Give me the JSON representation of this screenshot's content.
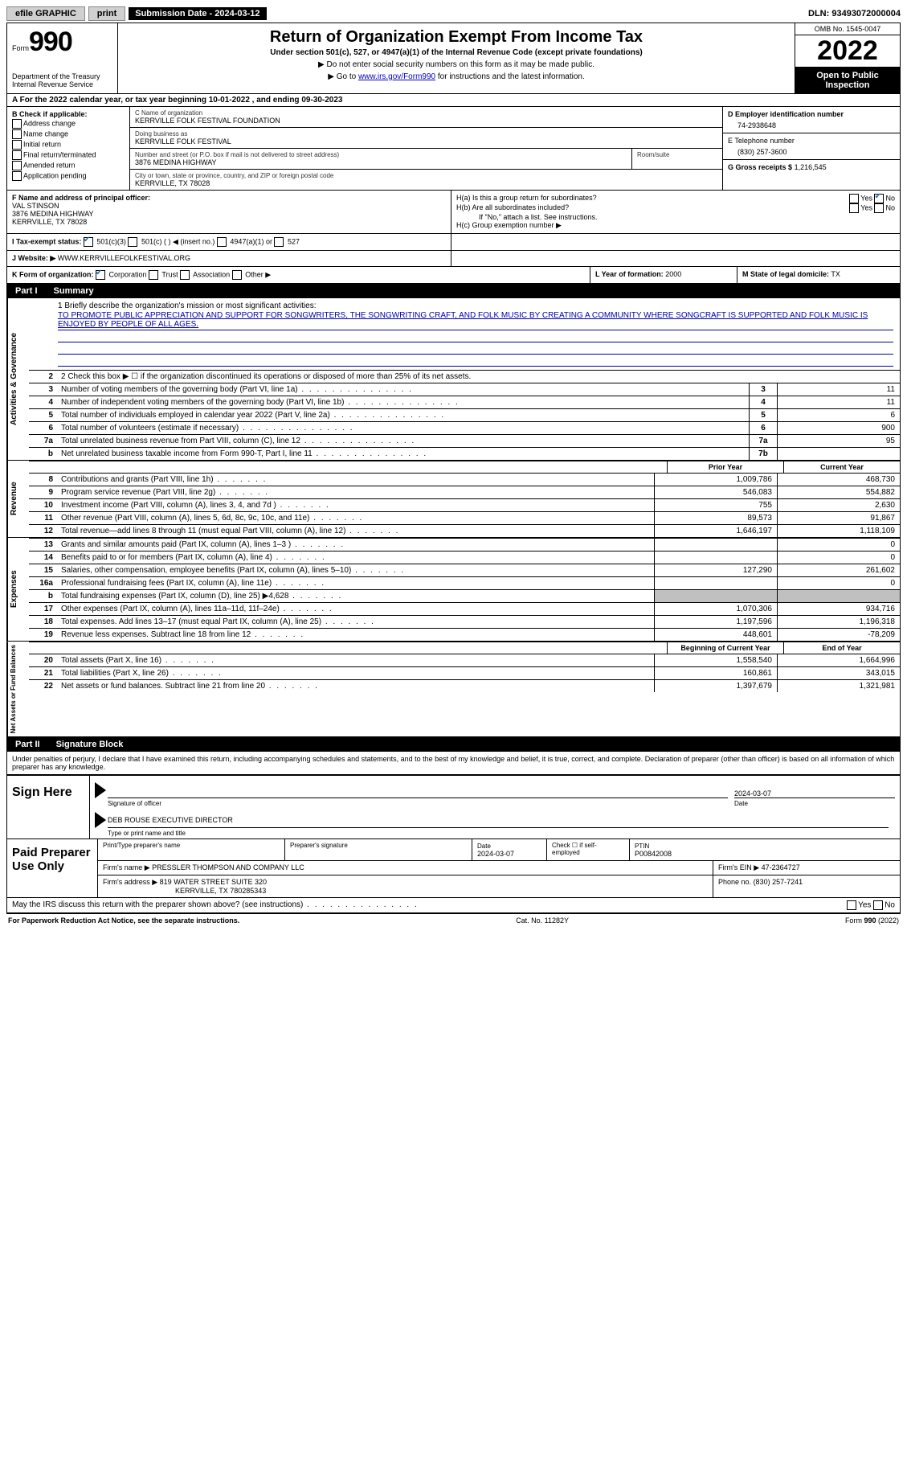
{
  "topbar": {
    "efile": "efile GRAPHIC",
    "print": "print",
    "subdate_label": "Submission Date - 2024-03-12",
    "dln": "DLN: 93493072000004"
  },
  "header": {
    "form_prefix": "Form",
    "form_number": "990",
    "dept": "Department of the Treasury",
    "irs": "Internal Revenue Service",
    "title": "Return of Organization Exempt From Income Tax",
    "subtitle": "Under section 501(c), 527, or 4947(a)(1) of the Internal Revenue Code (except private foundations)",
    "note1": "▶ Do not enter social security numbers on this form as it may be made public.",
    "note2_pre": "▶ Go to ",
    "note2_link": "www.irs.gov/Form990",
    "note2_post": " for instructions and the latest information.",
    "omb": "OMB No. 1545-0047",
    "year": "2022",
    "open": "Open to Public Inspection"
  },
  "rowA": "A For the 2022 calendar year, or tax year beginning 10-01-2022    , and ending 09-30-2023",
  "colB": {
    "title": "B Check if applicable:",
    "items": [
      "Address change",
      "Name change",
      "Initial return",
      "Final return/terminated",
      "Amended return",
      "Application pending"
    ]
  },
  "colC": {
    "name_label": "C Name of organization",
    "name": "KERRVILLE FOLK FESTIVAL FOUNDATION",
    "dba_label": "Doing business as",
    "dba": "KERRVILLE FOLK FESTIVAL",
    "street_label": "Number and street (or P.O. box if mail is not delivered to street address)",
    "street": "3876 MEDINA HIGHWAY",
    "room_label": "Room/suite",
    "city_label": "City or town, state or province, country, and ZIP or foreign postal code",
    "city": "KERRVILLE, TX  78028"
  },
  "colD": {
    "ein_label": "D Employer identification number",
    "ein": "74-2938648",
    "phone_label": "E Telephone number",
    "phone": "(830) 257-3600",
    "gross_label": "G Gross receipts $",
    "gross": "1,216,545"
  },
  "rowF": {
    "label": "F Name and address of principal officer:",
    "name": "VAL STINSON",
    "addr1": "3876 MEDINA HIGHWAY",
    "addr2": "KERRVILLE, TX  78028"
  },
  "rowH": {
    "ha": "H(a) Is this a group return for subordinates?",
    "hb": "H(b) Are all subordinates included?",
    "hb_note": "If \"No,\" attach a list. See instructions.",
    "hc": "H(c) Group exemption number ▶",
    "yes": "Yes",
    "no": "No"
  },
  "rowI": {
    "label": "I   Tax-exempt status:",
    "opt1": "501(c)(3)",
    "opt2": "501(c) (  ) ◀ (insert no.)",
    "opt3": "4947(a)(1) or",
    "opt4": "527"
  },
  "rowJ": {
    "label": "J   Website: ▶",
    "value": "WWW.KERRVILLEFOLKFESTIVAL.ORG"
  },
  "rowK": {
    "label": "K Form of organization:",
    "opts": [
      "Corporation",
      "Trust",
      "Association",
      "Other ▶"
    ],
    "l_label": "L Year of formation:",
    "l_val": "2000",
    "m_label": "M State of legal domicile:",
    "m_val": "TX"
  },
  "part1": {
    "num": "Part I",
    "title": "Summary"
  },
  "summary": {
    "mission_label": "1  Briefly describe the organization's mission or most significant activities:",
    "mission": "TO PROMOTE PUBLIC APPRECIATION AND SUPPORT FOR SONGWRITERS, THE SONGWRITING CRAFT, AND FOLK MUSIC BY CREATING A COMMUNITY WHERE SONGCRAFT IS SUPPORTED AND FOLK MUSIC IS ENJOYED BY PEOPLE OF ALL AGES.",
    "line2": "2   Check this box ▶ ☐ if the organization discontinued its operations or disposed of more than 25% of its net assets.",
    "prior_hdr": "Prior Year",
    "current_hdr": "Current Year",
    "beg_hdr": "Beginning of Current Year",
    "end_hdr": "End of Year",
    "sections": {
      "gov": "Activities & Governance",
      "rev": "Revenue",
      "exp": "Expenses",
      "net": "Net Assets or Fund Balances"
    },
    "rows_single": [
      {
        "n": "3",
        "d": "Number of voting members of the governing body (Part VI, line 1a)",
        "box": "3",
        "v": "11"
      },
      {
        "n": "4",
        "d": "Number of independent voting members of the governing body (Part VI, line 1b)",
        "box": "4",
        "v": "11"
      },
      {
        "n": "5",
        "d": "Total number of individuals employed in calendar year 2022 (Part V, line 2a)",
        "box": "5",
        "v": "6"
      },
      {
        "n": "6",
        "d": "Total number of volunteers (estimate if necessary)",
        "box": "6",
        "v": "900"
      },
      {
        "n": "7a",
        "d": "Total unrelated business revenue from Part VIII, column (C), line 12",
        "box": "7a",
        "v": "95"
      },
      {
        "n": "b",
        "d": "Net unrelated business taxable income from Form 990-T, Part I, line 11",
        "box": "7b",
        "v": ""
      }
    ],
    "rows_rev": [
      {
        "n": "8",
        "d": "Contributions and grants (Part VIII, line 1h)",
        "p": "1,009,786",
        "c": "468,730"
      },
      {
        "n": "9",
        "d": "Program service revenue (Part VIII, line 2g)",
        "p": "546,083",
        "c": "554,882"
      },
      {
        "n": "10",
        "d": "Investment income (Part VIII, column (A), lines 3, 4, and 7d )",
        "p": "755",
        "c": "2,630"
      },
      {
        "n": "11",
        "d": "Other revenue (Part VIII, column (A), lines 5, 6d, 8c, 9c, 10c, and 11e)",
        "p": "89,573",
        "c": "91,867"
      },
      {
        "n": "12",
        "d": "Total revenue—add lines 8 through 11 (must equal Part VIII, column (A), line 12)",
        "p": "1,646,197",
        "c": "1,118,109"
      }
    ],
    "rows_exp": [
      {
        "n": "13",
        "d": "Grants and similar amounts paid (Part IX, column (A), lines 1–3 )",
        "p": "",
        "c": "0"
      },
      {
        "n": "14",
        "d": "Benefits paid to or for members (Part IX, column (A), line 4)",
        "p": "",
        "c": "0"
      },
      {
        "n": "15",
        "d": "Salaries, other compensation, employee benefits (Part IX, column (A), lines 5–10)",
        "p": "127,290",
        "c": "261,602"
      },
      {
        "n": "16a",
        "d": "Professional fundraising fees (Part IX, column (A), line 11e)",
        "p": "",
        "c": "0"
      },
      {
        "n": "b",
        "d": "Total fundraising expenses (Part IX, column (D), line 25) ▶4,628",
        "p": "GREY",
        "c": "GREY"
      },
      {
        "n": "17",
        "d": "Other expenses (Part IX, column (A), lines 11a–11d, 11f–24e)",
        "p": "1,070,306",
        "c": "934,716"
      },
      {
        "n": "18",
        "d": "Total expenses. Add lines 13–17 (must equal Part IX, column (A), line 25)",
        "p": "1,197,596",
        "c": "1,196,318"
      },
      {
        "n": "19",
        "d": "Revenue less expenses. Subtract line 18 from line 12",
        "p": "448,601",
        "c": "-78,209"
      }
    ],
    "rows_net": [
      {
        "n": "20",
        "d": "Total assets (Part X, line 16)",
        "p": "1,558,540",
        "c": "1,664,996"
      },
      {
        "n": "21",
        "d": "Total liabilities (Part X, line 26)",
        "p": "160,861",
        "c": "343,015"
      },
      {
        "n": "22",
        "d": "Net assets or fund balances. Subtract line 21 from line 20",
        "p": "1,397,679",
        "c": "1,321,981"
      }
    ]
  },
  "part2": {
    "num": "Part II",
    "title": "Signature Block"
  },
  "perjury": "Under penalties of perjury, I declare that I have examined this return, including accompanying schedules and statements, and to the best of my knowledge and belief, it is true, correct, and complete. Declaration of preparer (other than officer) is based on all information of which preparer has any knowledge.",
  "sign": {
    "here": "Sign Here",
    "sig_label": "Signature of officer",
    "date": "2024-03-07",
    "date_label": "Date",
    "name": "DEB ROUSE  EXECUTIVE DIRECTOR",
    "name_label": "Type or print name and title"
  },
  "paid": {
    "title": "Paid Preparer Use Only",
    "h1": "Print/Type preparer's name",
    "h2": "Preparer's signature",
    "h3_label": "Date",
    "h3": "2024-03-07",
    "h4": "Check ☐ if self-employed",
    "h5_label": "PTIN",
    "h5": "P00842008",
    "firm_label": "Firm's name    ▶",
    "firm": "PRESSLER THOMPSON AND COMPANY LLC",
    "ein_label": "Firm's EIN ▶",
    "ein": "47-2364727",
    "addr_label": "Firm's address ▶",
    "addr1": "819 WATER STREET SUITE 320",
    "addr2": "KERRVILLE, TX  780285343",
    "phone_label": "Phone no.",
    "phone": "(830) 257-7241"
  },
  "may_discuss": "May the IRS discuss this return with the preparer shown above? (see instructions)",
  "footer": {
    "left": "For Paperwork Reduction Act Notice, see the separate instructions.",
    "mid": "Cat. No. 11282Y",
    "right": "Form 990 (2022)"
  }
}
